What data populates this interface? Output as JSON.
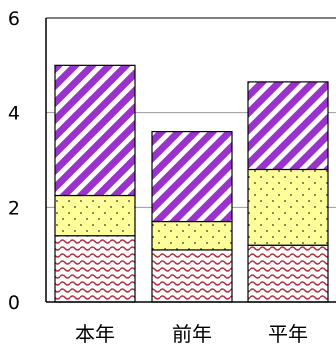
{
  "chart_data": {
    "type": "bar",
    "stacked": true,
    "categories": [
      "本年",
      "前年",
      "平年"
    ],
    "series": [
      {
        "values": [
          1.4,
          1.1,
          1.2
        ],
        "color": "#c0504d",
        "pattern": "wave"
      },
      {
        "values": [
          0.85,
          0.6,
          1.6
        ],
        "color": "#ffff99",
        "pattern": "dots"
      },
      {
        "values": [
          2.75,
          1.9,
          1.85
        ],
        "color": "#9933cc",
        "pattern": "diagonal-stripes"
      }
    ],
    "y_ticks": [
      "0",
      "2",
      "4",
      "6"
    ],
    "ylim": [
      0,
      6
    ],
    "grid": true,
    "legend": "none"
  }
}
